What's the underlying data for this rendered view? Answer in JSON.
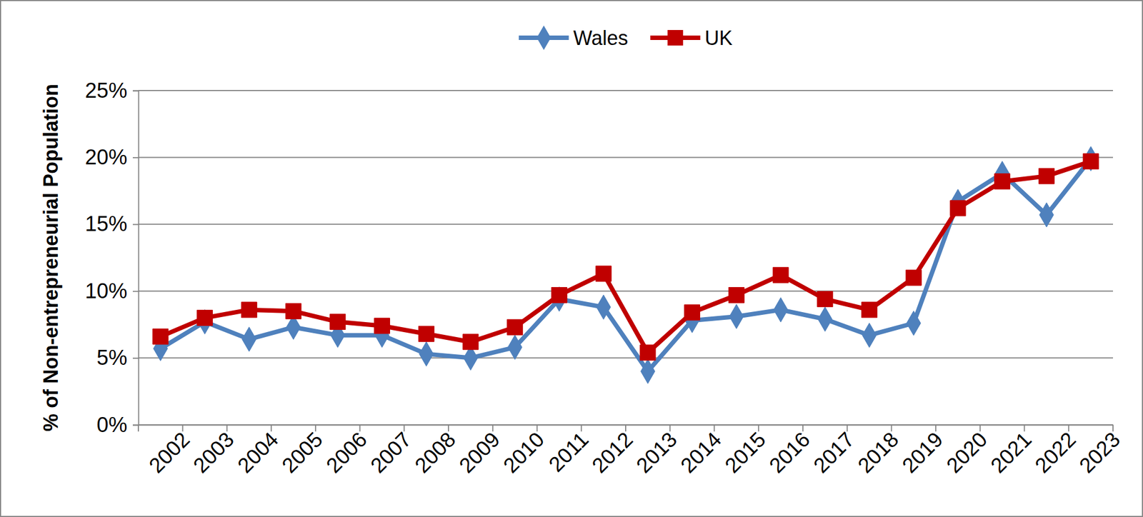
{
  "chart_data": {
    "type": "line",
    "y_label": "% of Non-entrepreneurial Population",
    "categories": [
      "2002",
      "2003",
      "2004",
      "2005",
      "2006",
      "2007",
      "2008",
      "2009",
      "2010",
      "2011",
      "2012",
      "2013",
      "2014",
      "2015",
      "2016",
      "2017",
      "2018",
      "2019",
      "2020",
      "2021",
      "2022",
      "2023"
    ],
    "series": [
      {
        "name": "Wales",
        "color": "#4f81bd",
        "marker": "diamond",
        "line_style": "solid",
        "values": [
          5.7,
          7.7,
          6.4,
          7.3,
          6.7,
          6.7,
          5.3,
          5.0,
          5.8,
          9.4,
          8.8,
          4.0,
          7.8,
          8.1,
          8.6,
          7.9,
          6.7,
          7.6,
          16.7,
          18.8,
          15.7,
          19.9
        ]
      },
      {
        "name": "UK",
        "color": "#c00000",
        "marker": "square",
        "line_style": "solid",
        "values": [
          6.6,
          8.0,
          8.6,
          8.5,
          7.7,
          7.4,
          6.8,
          6.2,
          7.3,
          9.7,
          11.3,
          5.4,
          8.4,
          9.7,
          11.2,
          9.4,
          8.6,
          11.0,
          16.2,
          18.2,
          18.6,
          19.7
        ]
      }
    ],
    "ylim": [
      0,
      25
    ],
    "yticks": [
      {
        "value": 0,
        "label": "0%"
      },
      {
        "value": 5,
        "label": "5%"
      },
      {
        "value": 10,
        "label": "10%"
      },
      {
        "value": 15,
        "label": "15%"
      },
      {
        "value": 20,
        "label": "20%"
      },
      {
        "value": 25,
        "label": "25%"
      }
    ],
    "grid": true,
    "legend": "top"
  }
}
